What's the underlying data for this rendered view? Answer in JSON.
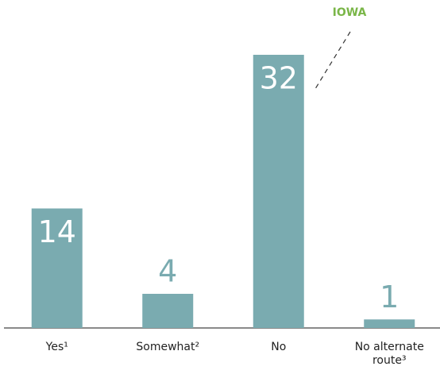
{
  "chart_data": {
    "type": "bar",
    "categories": [
      "Yes¹",
      "Somewhat²",
      "No",
      "No alternate route³"
    ],
    "values": [
      14,
      4,
      32,
      1
    ],
    "color": "#7aabb0",
    "annotation": "IOWA",
    "annotation_color": "#7ab648"
  }
}
